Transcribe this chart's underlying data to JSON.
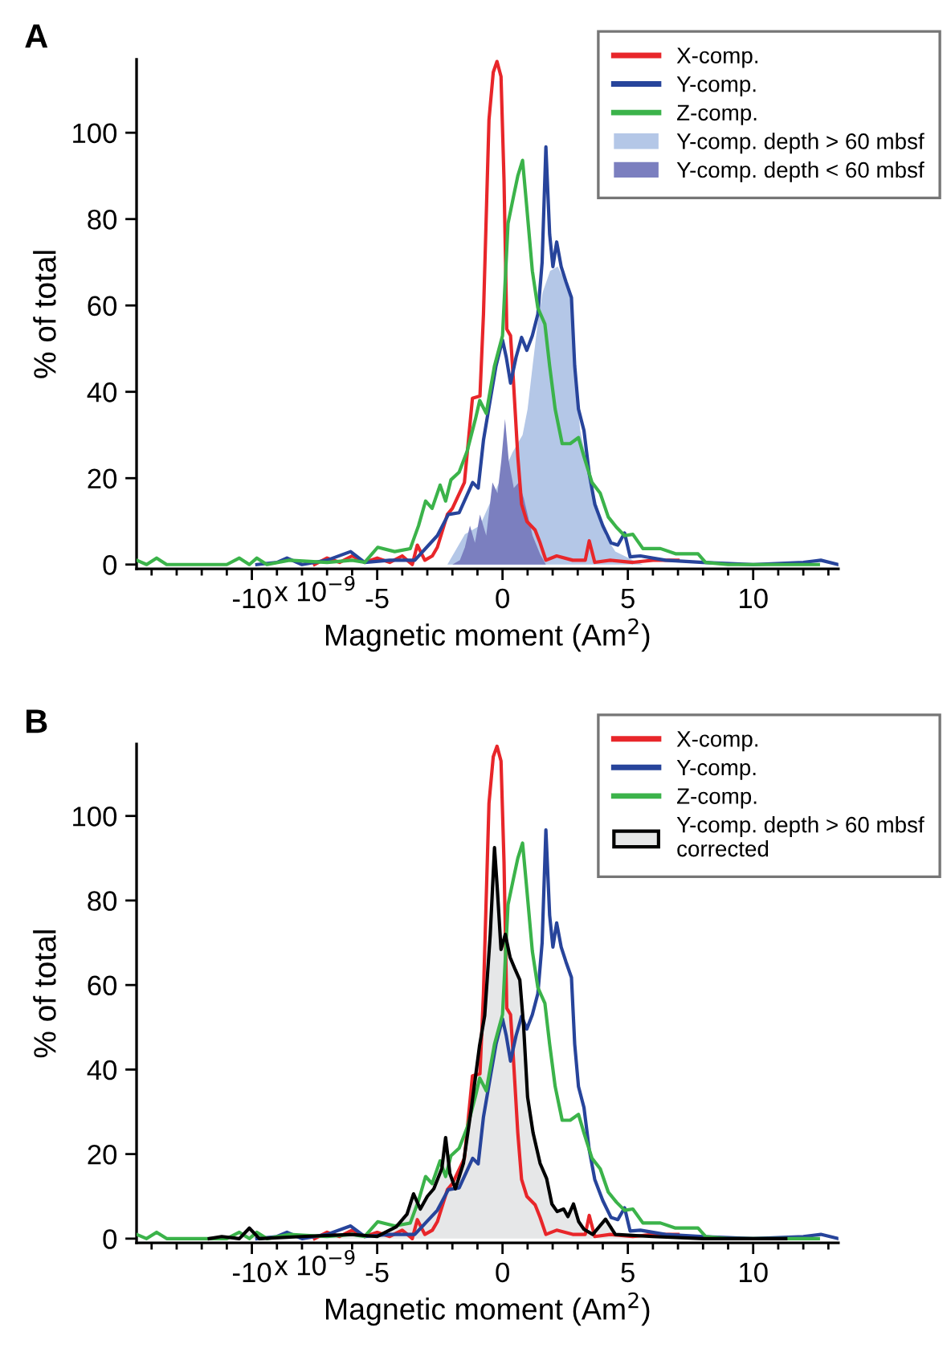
{
  "chart_data": [
    {
      "type": "line",
      "title": "A",
      "xlabel": "Magnetic moment (Am$^{2}$)",
      "ylabel": "% of total",
      "annotations": [
        "x 10$^{−9}$"
      ],
      "xlim": [
        -14.6,
        13.4
      ],
      "ylim": [
        -1,
        117
      ],
      "xticks": [
        {
          "value": -14,
          "label": null
        },
        {
          "value": -13,
          "label": null
        },
        {
          "value": -12,
          "label": null
        },
        {
          "value": -11,
          "label": null
        },
        -10,
        {
          "value": -9,
          "label": null
        },
        {
          "value": -8,
          "label": null
        },
        {
          "value": -7,
          "label": null
        },
        {
          "value": -6,
          "label": null
        },
        -5,
        {
          "value": -4,
          "label": null
        },
        {
          "value": -3,
          "label": null
        },
        {
          "value": -2,
          "label": null
        },
        {
          "value": -1,
          "label": null
        },
        0,
        {
          "value": 1,
          "label": null
        },
        {
          "value": 2,
          "label": null
        },
        {
          "value": 3,
          "label": null
        },
        {
          "value": 4,
          "label": null
        },
        5,
        {
          "value": 6,
          "label": null
        },
        {
          "value": 7,
          "label": null
        },
        {
          "value": 8,
          "label": null
        },
        {
          "value": 9,
          "label": null
        },
        10,
        {
          "value": 11,
          "label": null
        },
        {
          "value": 12,
          "label": null
        },
        {
          "value": 13,
          "label": null
        }
      ],
      "yticks": [
        0,
        20,
        40,
        60,
        80,
        100
      ],
      "legend": "top right",
      "series": [
        {
          "name": "X-comp.",
          "color": "#e8262a",
          "x": [
            -7.5,
            -7,
            -6.5,
            -6,
            -5.5,
            -5,
            -4.5,
            -4,
            -3.6,
            -3.4,
            -3.1,
            -2.8,
            -2.6,
            -2.2,
            -2.0,
            -1.52,
            -1.2,
            -0.9,
            -0.76,
            -0.54,
            -0.37,
            -0.22,
            -0.06,
            0.06,
            0.17,
            0.32,
            0.43,
            0.61,
            0.76,
            0.97,
            1.3,
            1.5,
            1.73,
            2.16,
            2.8,
            3.3,
            3.46,
            3.68,
            4.3,
            5.2,
            6,
            7
          ],
          "values": [
            0,
            1.5,
            0.5,
            2,
            0.5,
            1.5,
            0.5,
            2,
            0,
            4.5,
            1,
            2,
            4,
            11.6,
            13,
            19,
            38.5,
            39,
            58,
            103,
            114,
            116.5,
            113,
            89,
            54.5,
            53,
            43,
            25,
            14,
            10,
            8,
            5,
            1,
            2,
            1,
            1,
            5.5,
            0.5,
            1,
            0.5,
            1,
            1
          ]
        },
        {
          "type": "line",
          "name": "Y-comp.",
          "color": "#27449b",
          "x": [
            -9.8,
            -9,
            -8.6,
            -8,
            -7,
            -6.06,
            -5.5,
            -4.5,
            -3.5,
            -2.6,
            -2.16,
            -1.73,
            -1.19,
            -0.97,
            -0.76,
            -0.48,
            -0.26,
            0,
            0.15,
            0.32,
            0.54,
            0.76,
            0.97,
            1.19,
            1.41,
            1.58,
            1.73,
            1.88,
            2.01,
            2.16,
            2.34,
            2.53,
            2.75,
            2.88,
            3.03,
            3.25,
            3.46,
            3.68,
            4.0,
            4.33,
            4.6,
            4.87,
            5.09,
            5.5,
            6.5,
            8,
            10,
            12,
            12.7,
            13.4
          ],
          "values": [
            0,
            0.5,
            1.5,
            0,
            1,
            3,
            0.5,
            1,
            1,
            6.7,
            11.6,
            12,
            19,
            17.7,
            28.8,
            38.5,
            46,
            52,
            48,
            42,
            48,
            52.6,
            49.6,
            53,
            58,
            70,
            96.7,
            76.5,
            69,
            74.7,
            69,
            65.5,
            61.8,
            46,
            36,
            31,
            21,
            14,
            9,
            5,
            4.5,
            7.3,
            1.8,
            2,
            1,
            0.5,
            0,
            0.5,
            1,
            0
          ]
        },
        {
          "type": "line",
          "name": "Z-comp.",
          "color": "#3bb34a",
          "x": [
            -14.6,
            -14.2,
            -13.8,
            -13.4,
            -11,
            -10.5,
            -10.1,
            -9.8,
            -9.4,
            -8.5,
            -7,
            -6,
            -5.5,
            -4.98,
            -4.3,
            -3.68,
            -3.35,
            -3.07,
            -2.81,
            -2.49,
            -2.27,
            -2.06,
            -1.73,
            -1.41,
            -1.08,
            -0.91,
            -0.65,
            -0.32,
            0,
            0.22,
            0.43,
            0.61,
            0.8,
            0.97,
            1.19,
            1.41,
            1.69,
            1.88,
            2.1,
            2.38,
            2.7,
            3.03,
            3.25,
            3.57,
            3.9,
            4.22,
            4.55,
            4.87,
            5.2,
            5.6,
            6.3,
            6.9,
            7.8,
            8.1,
            9,
            12.6
          ],
          "values": [
            1,
            0,
            1.5,
            0,
            0,
            1.5,
            0,
            1.5,
            0,
            1,
            0.5,
            1,
            0.5,
            4,
            3,
            3.7,
            9,
            14.7,
            13,
            18.4,
            14.7,
            19.6,
            21.4,
            26.3,
            33.7,
            38,
            35,
            46,
            53,
            79,
            85,
            90,
            93.6,
            82.6,
            68,
            59.4,
            55.7,
            46,
            36,
            28,
            28,
            29.4,
            25,
            19,
            16.5,
            11,
            8.6,
            6.7,
            7,
            3.7,
            3.7,
            2.5,
            2.5,
            0.5,
            0,
            0
          ]
        },
        {
          "type": "area",
          "name": "Y-comp. depth > 60 mbsf",
          "color": "#b4c7e7",
          "x": [
            -2.2,
            -1.5,
            -0.9,
            0.4,
            0.8,
            1.0,
            1.2,
            1.4,
            1.6,
            1.9,
            2.2,
            2.5,
            2.7,
            2.9,
            3.1,
            3.5,
            3.8,
            4.1,
            4.5,
            5.2,
            5.6
          ],
          "values": [
            0,
            7,
            9,
            26,
            30,
            36,
            46,
            55.7,
            63,
            68,
            69,
            65.5,
            61.8,
            43.5,
            31,
            20,
            13,
            6.7,
            3,
            1,
            0
          ]
        },
        {
          "type": "area",
          "name": "Y-comp. depth < 60 mbsf",
          "color": "#7b7fbf",
          "x": [
            -2.0,
            -1.7,
            -1.5,
            -1.3,
            -1.1,
            -0.9,
            -0.65,
            -0.4,
            -0.2,
            -0.05,
            0.1,
            0.25,
            0.45,
            0.65,
            0.85,
            1.2,
            1.5,
            1.73
          ],
          "values": [
            0,
            1,
            4,
            9,
            5,
            11.6,
            6.7,
            19,
            16.5,
            24,
            33.7,
            24,
            17.7,
            19,
            15.3,
            6.7,
            2.4,
            0
          ]
        }
      ]
    },
    {
      "type": "line",
      "title": "B",
      "xlabel": "Magnetic moment (Am$^{2}$)",
      "ylabel": "% of total",
      "annotations": [
        "x 10$^{−9}$"
      ],
      "xlim": [
        -14.6,
        13.4
      ],
      "ylim": [
        -1,
        117
      ],
      "xticks": [
        {
          "value": -14,
          "label": null
        },
        {
          "value": -13,
          "label": null
        },
        {
          "value": -12,
          "label": null
        },
        {
          "value": -11,
          "label": null
        },
        -10,
        {
          "value": -9,
          "label": null
        },
        {
          "value": -8,
          "label": null
        },
        {
          "value": -7,
          "label": null
        },
        {
          "value": -6,
          "label": null
        },
        -5,
        {
          "value": -4,
          "label": null
        },
        {
          "value": -3,
          "label": null
        },
        {
          "value": -2,
          "label": null
        },
        {
          "value": -1,
          "label": null
        },
        0,
        {
          "value": 1,
          "label": null
        },
        {
          "value": 2,
          "label": null
        },
        {
          "value": 3,
          "label": null
        },
        {
          "value": 4,
          "label": null
        },
        5,
        {
          "value": 6,
          "label": null
        },
        {
          "value": 7,
          "label": null
        },
        {
          "value": 8,
          "label": null
        },
        {
          "value": 9,
          "label": null
        },
        10,
        {
          "value": 11,
          "label": null
        },
        {
          "value": 12,
          "label": null
        },
        {
          "value": 13,
          "label": null
        }
      ],
      "yticks": [
        0,
        20,
        40,
        60,
        80,
        100
      ],
      "legend": "top right",
      "series": [
        {
          "type": "line",
          "name": "X-comp.",
          "color": "#e8262a",
          "x": [
            -7.5,
            -7,
            -6.5,
            -6,
            -5.5,
            -5,
            -4.5,
            -4,
            -3.6,
            -3.4,
            -3.1,
            -2.8,
            -2.6,
            -2.2,
            -2.0,
            -1.52,
            -1.2,
            -0.9,
            -0.76,
            -0.54,
            -0.37,
            -0.22,
            -0.06,
            0.06,
            0.17,
            0.32,
            0.43,
            0.61,
            0.76,
            0.97,
            1.3,
            1.5,
            1.73,
            2.16,
            2.8,
            3.3,
            3.46,
            3.68,
            4.3,
            5.2,
            6,
            7
          ],
          "values": [
            0,
            1.5,
            0.5,
            2,
            0.5,
            1.5,
            0.5,
            2,
            0,
            4.5,
            1,
            2,
            4,
            11.6,
            13,
            19,
            38.5,
            39,
            58,
            103,
            114,
            116.5,
            113,
            89,
            54.5,
            53,
            43,
            25,
            14,
            10,
            8,
            5,
            1,
            2,
            1,
            1,
            5.5,
            0.5,
            1,
            0.5,
            1,
            1
          ]
        },
        {
          "name": "Y-comp.",
          "color": "#27449b",
          "x": [
            -9.8,
            -9,
            -8.6,
            -8,
            -7,
            -6.06,
            -5.5,
            -4.5,
            -3.5,
            -2.6,
            -2.16,
            -1.73,
            -1.19,
            -0.97,
            -0.76,
            -0.48,
            -0.26,
            0,
            0.15,
            0.32,
            0.54,
            0.76,
            0.97,
            1.19,
            1.41,
            1.58,
            1.73,
            1.88,
            2.01,
            2.16,
            2.34,
            2.53,
            2.75,
            2.88,
            3.03,
            3.25,
            3.46,
            3.68,
            4.0,
            4.33,
            4.6,
            4.87,
            5.09,
            5.5,
            6.5,
            8,
            10,
            12,
            12.7,
            13.4
          ],
          "values": [
            0,
            0.5,
            1.5,
            0,
            1,
            3,
            0.5,
            1,
            1,
            6.7,
            11.6,
            12,
            19,
            17.7,
            28.8,
            38.5,
            46,
            52,
            48,
            42,
            48,
            52.6,
            49.6,
            53,
            58,
            70,
            96.7,
            76.5,
            69,
            74.7,
            69,
            65.5,
            61.8,
            46,
            36,
            31,
            21,
            14,
            9,
            5,
            4.5,
            7.3,
            1.8,
            2,
            1,
            0.5,
            0,
            0.5,
            1,
            0
          ]
        },
        {
          "name": "Z-comp.",
          "color": "#3bb34a",
          "x": [
            -14.6,
            -14.2,
            -13.8,
            -13.4,
            -11,
            -10.5,
            -10.1,
            -9.8,
            -9.4,
            -8.5,
            -7,
            -6,
            -5.5,
            -4.98,
            -4.3,
            -3.68,
            -3.35,
            -3.07,
            -2.81,
            -2.49,
            -2.27,
            -2.06,
            -1.73,
            -1.41,
            -1.08,
            -0.91,
            -0.65,
            -0.32,
            0,
            0.22,
            0.43,
            0.61,
            0.8,
            0.97,
            1.19,
            1.41,
            1.69,
            1.88,
            2.1,
            2.38,
            2.7,
            3.03,
            3.25,
            3.57,
            3.9,
            4.22,
            4.55,
            4.87,
            5.2,
            5.6,
            6.3,
            6.9,
            7.8,
            8.1,
            9,
            12.6
          ],
          "values": [
            1,
            0,
            1.5,
            0,
            0,
            1.5,
            0,
            1.5,
            0,
            1,
            0.5,
            1,
            0.5,
            4,
            3,
            3.7,
            9,
            14.7,
            13,
            18.4,
            14.7,
            19.6,
            21.4,
            26.3,
            33.7,
            38,
            35,
            46,
            53,
            79,
            85,
            90,
            93.6,
            82.6,
            68,
            59.4,
            55.7,
            46,
            36,
            28,
            28,
            29.4,
            25,
            19,
            16.5,
            11,
            8.6,
            6.7,
            7,
            3.7,
            3.7,
            2.5,
            2.5,
            0.5,
            0,
            0
          ]
        },
        {
          "type": "area",
          "name": "Y-comp. depth > 60 mbsf\ncorrected",
          "color": "#e6e7e8",
          "line_style": "solid",
          "x": [
            -11.7,
            -11.2,
            -10.5,
            -10.1,
            -9.7,
            -8,
            -6,
            -5,
            -4.24,
            -3.81,
            -3.55,
            -3.28,
            -3.0,
            -2.74,
            -2.42,
            -2.27,
            -2.1,
            -1.88,
            -1.56,
            -1.24,
            -0.92,
            -0.71,
            -0.49,
            -0.32,
            -0.21,
            -0.06,
            0.11,
            0.3,
            0.51,
            0.69,
            0.84,
            1.0,
            1.22,
            1.5,
            1.76,
            1.97,
            2.18,
            2.44,
            2.61,
            2.83,
            3.04,
            3.25,
            3.6,
            4.11,
            4.5,
            6,
            8,
            11.3
          ],
          "values": [
            0,
            0.5,
            0,
            2.5,
            0,
            0.5,
            1,
            0.5,
            2.8,
            5.8,
            10.6,
            7,
            10,
            11.8,
            16.6,
            23.9,
            15.4,
            11.8,
            17.8,
            31,
            45.5,
            52.8,
            72,
            92.5,
            83,
            68.4,
            72,
            66.6,
            63.6,
            61.2,
            50.4,
            33.5,
            25,
            17.8,
            14.2,
            8.2,
            6.4,
            7,
            5.2,
            8.2,
            4,
            2.2,
            1,
            4.6,
            1,
            0.5,
            0,
            0
          ]
        }
      ]
    }
  ]
}
